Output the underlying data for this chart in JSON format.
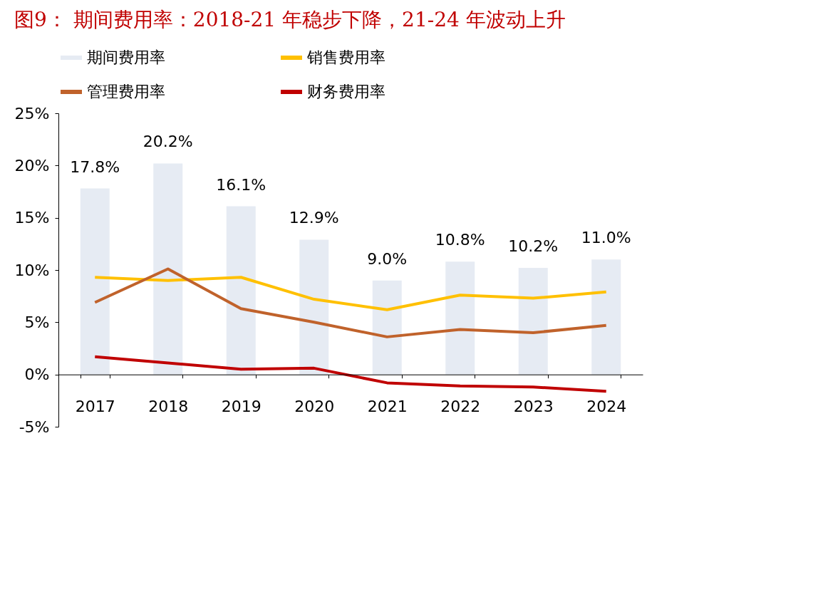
{
  "chart_data": {
    "type": "bar",
    "title": "图9：  期间费用率：2018-21 年稳步下降，21-24 年波动上升",
    "categories": [
      "2017",
      "2018",
      "2019",
      "2020",
      "2021",
      "2022",
      "2023",
      "2024"
    ],
    "series": [
      {
        "name": "期间费用率",
        "color": "#e6ebf3",
        "values": [
          17.8,
          20.2,
          16.1,
          12.9,
          9.0,
          10.8,
          10.2,
          11.0
        ],
        "value_labels": [
          "17.8%",
          "20.2%",
          "16.1%",
          "12.9%",
          "9.0%",
          "10.8%",
          "10.2%",
          "11.0%"
        ]
      },
      {
        "name": "销售费用率",
        "type": "line",
        "color": "#ffc000",
        "values": [
          9.3,
          9.0,
          9.3,
          7.2,
          6.2,
          7.6,
          7.3,
          7.9
        ]
      },
      {
        "name": "管理费用率",
        "type": "line",
        "color": "#c0622b",
        "values": [
          6.9,
          10.1,
          6.3,
          5.0,
          3.6,
          4.3,
          4.0,
          4.7
        ]
      },
      {
        "name": "财务费用率",
        "type": "line",
        "color": "#c00000",
        "values": [
          1.7,
          1.1,
          0.5,
          0.6,
          -0.8,
          -1.1,
          -1.2,
          -1.6
        ]
      }
    ],
    "ylim": [
      -5,
      25
    ],
    "yticks": [
      {
        "value": -5,
        "label": "-5%"
      },
      {
        "value": 0,
        "label": "0%"
      },
      {
        "value": 5,
        "label": "5%"
      },
      {
        "value": 10,
        "label": "10%"
      },
      {
        "value": 15,
        "label": "15%"
      },
      {
        "value": 20,
        "label": "20%"
      },
      {
        "value": 25,
        "label": "25%"
      }
    ],
    "grid": false,
    "legend": "top",
    "marker": "none",
    "line_style": "solid"
  }
}
